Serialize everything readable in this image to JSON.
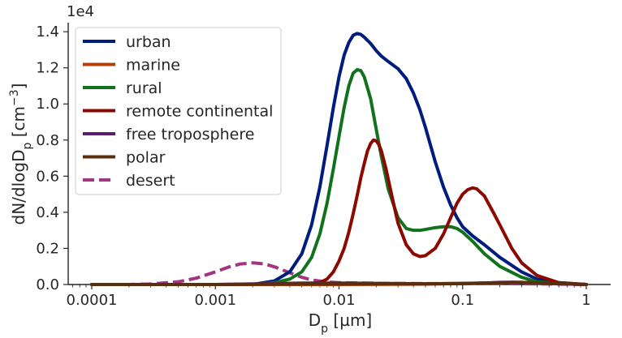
{
  "chart_data": {
    "type": "line",
    "xlabel": "D",
    "xlabel_sub": "p",
    "xlabel_unit": " [µm]",
    "ylabel": "dN/dlogD",
    "ylabel_sub": "p",
    "ylabel_unit": " [cm",
    "ylabel_sup": "−3",
    "ylabel_close": "]",
    "y_offset_label": "1e4",
    "x_scale": "log",
    "xlim": [
      0.0001,
      1.0
    ],
    "ylim": [
      0,
      1.45
    ],
    "x_ticks": [
      {
        "value": 0.0001,
        "label": "0.0001"
      },
      {
        "value": 0.001,
        "label": "0.001"
      },
      {
        "value": 0.01,
        "label": "0.01"
      },
      {
        "value": 0.1,
        "label": "0.1"
      },
      {
        "value": 1,
        "label": "1"
      }
    ],
    "y_ticks": [
      {
        "value": 0.0,
        "label": "0.0"
      },
      {
        "value": 0.2,
        "label": "0.2"
      },
      {
        "value": 0.4,
        "label": "0.4"
      },
      {
        "value": 0.6,
        "label": "0.6"
      },
      {
        "value": 0.8,
        "label": "0.8"
      },
      {
        "value": 1.0,
        "label": "1.0"
      },
      {
        "value": 1.2,
        "label": "1.2"
      },
      {
        "value": 1.4,
        "label": "1.4"
      }
    ],
    "grid": false,
    "legend_position": "top-left",
    "series": [
      {
        "name": "urban",
        "color": "#001c7f",
        "dash": "solid",
        "x": [
          0.0001,
          0.001,
          0.002,
          0.003,
          0.004,
          0.005,
          0.006,
          0.007,
          0.008,
          0.009,
          0.01,
          0.011,
          0.012,
          0.013,
          0.014,
          0.015,
          0.016,
          0.018,
          0.02,
          0.022,
          0.025,
          0.03,
          0.035,
          0.04,
          0.045,
          0.05,
          0.06,
          0.07,
          0.08,
          0.09,
          0.1,
          0.12,
          0.15,
          0.2,
          0.3,
          0.4,
          0.6,
          1.0
        ],
        "y": [
          0.0,
          0.0,
          0.0,
          0.02,
          0.07,
          0.17,
          0.33,
          0.54,
          0.77,
          0.98,
          1.15,
          1.27,
          1.34,
          1.38,
          1.39,
          1.385,
          1.37,
          1.335,
          1.295,
          1.265,
          1.235,
          1.195,
          1.14,
          1.06,
          0.97,
          0.87,
          0.68,
          0.54,
          0.44,
          0.37,
          0.32,
          0.27,
          0.22,
          0.15,
          0.07,
          0.03,
          0.01,
          0.0
        ]
      },
      {
        "name": "marine",
        "color": "#b1400d",
        "dash": "solid",
        "x": [
          0.0001,
          0.01,
          0.05,
          0.1,
          0.2,
          0.3,
          0.5,
          1.0
        ],
        "y": [
          0.0,
          0.0,
          0.002,
          0.005,
          0.01,
          0.012,
          0.006,
          0.0
        ]
      },
      {
        "name": "rural",
        "color": "#12711c",
        "dash": "solid",
        "x": [
          0.0001,
          0.002,
          0.003,
          0.004,
          0.005,
          0.006,
          0.007,
          0.008,
          0.009,
          0.01,
          0.011,
          0.012,
          0.013,
          0.014,
          0.015,
          0.016,
          0.018,
          0.02,
          0.022,
          0.025,
          0.03,
          0.035,
          0.04,
          0.045,
          0.05,
          0.06,
          0.07,
          0.08,
          0.09,
          0.1,
          0.12,
          0.15,
          0.2,
          0.3,
          0.4,
          0.6,
          1.0
        ],
        "y": [
          0.0,
          0.0,
          0.01,
          0.03,
          0.07,
          0.15,
          0.28,
          0.45,
          0.64,
          0.82,
          0.98,
          1.1,
          1.17,
          1.19,
          1.185,
          1.15,
          1.03,
          0.86,
          0.71,
          0.53,
          0.37,
          0.31,
          0.3,
          0.3,
          0.305,
          0.315,
          0.32,
          0.32,
          0.31,
          0.29,
          0.24,
          0.17,
          0.1,
          0.04,
          0.015,
          0.005,
          0.0
        ]
      },
      {
        "name": "remote continental",
        "color": "#8c0800",
        "dash": "solid",
        "x": [
          0.0001,
          0.005,
          0.007,
          0.008,
          0.009,
          0.01,
          0.011,
          0.012,
          0.013,
          0.014,
          0.015,
          0.016,
          0.017,
          0.018,
          0.019,
          0.02,
          0.021,
          0.022,
          0.024,
          0.026,
          0.028,
          0.03,
          0.035,
          0.04,
          0.045,
          0.05,
          0.06,
          0.07,
          0.08,
          0.09,
          0.1,
          0.11,
          0.12,
          0.13,
          0.15,
          0.18,
          0.2,
          0.25,
          0.3,
          0.4,
          0.6,
          1.0
        ],
        "y": [
          0.0,
          0.0,
          0.01,
          0.03,
          0.07,
          0.13,
          0.2,
          0.29,
          0.39,
          0.49,
          0.59,
          0.67,
          0.74,
          0.78,
          0.8,
          0.795,
          0.775,
          0.74,
          0.64,
          0.53,
          0.43,
          0.34,
          0.22,
          0.17,
          0.155,
          0.16,
          0.2,
          0.28,
          0.37,
          0.45,
          0.5,
          0.525,
          0.535,
          0.53,
          0.49,
          0.39,
          0.33,
          0.2,
          0.12,
          0.05,
          0.01,
          0.0
        ]
      },
      {
        "name": "free troposphere",
        "color": "#591e71",
        "dash": "solid",
        "x": [
          0.0001,
          0.001,
          0.003,
          0.005,
          0.01,
          0.02,
          0.05,
          0.1,
          0.15,
          0.2,
          0.25,
          0.3,
          0.4,
          0.6,
          1.0
        ],
        "y": [
          0.0,
          0.0,
          0.005,
          0.008,
          0.008,
          0.006,
          0.004,
          0.005,
          0.008,
          0.012,
          0.013,
          0.012,
          0.008,
          0.004,
          0.0
        ]
      },
      {
        "name": "polar",
        "color": "#592f0d",
        "dash": "solid",
        "x": [
          0.0001,
          0.001,
          0.005,
          0.01,
          0.05,
          0.1,
          0.2,
          0.3,
          0.5,
          1.0
        ],
        "y": [
          0.0,
          0.0,
          0.004,
          0.004,
          0.004,
          0.006,
          0.01,
          0.012,
          0.008,
          0.0
        ]
      },
      {
        "name": "desert",
        "color": "#a23582",
        "dash": "dashed",
        "x": [
          0.0001,
          0.0002,
          0.0003,
          0.0005,
          0.0007,
          0.001,
          0.0013,
          0.0016,
          0.002,
          0.0025,
          0.003,
          0.004,
          0.005,
          0.006,
          0.008,
          0.01,
          0.02,
          0.05,
          0.1,
          0.2,
          0.5,
          1.0
        ],
        "y": [
          0.0,
          0.0,
          0.003,
          0.015,
          0.035,
          0.07,
          0.098,
          0.114,
          0.12,
          0.114,
          0.098,
          0.065,
          0.04,
          0.025,
          0.014,
          0.01,
          0.007,
          0.005,
          0.005,
          0.005,
          0.003,
          0.0
        ]
      }
    ]
  }
}
